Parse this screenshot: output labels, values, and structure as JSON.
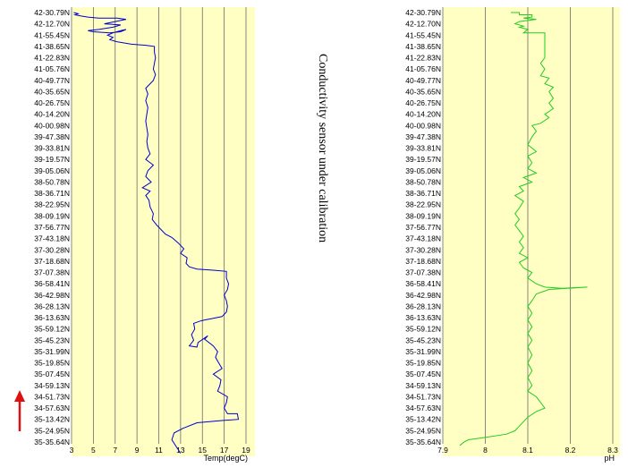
{
  "note": "Conductivity sensor under calibration",
  "colors": {
    "panel_bg": "#ffffc4",
    "gridline": "#6a6a6a",
    "temp_line": "#0000cc",
    "ph_line": "#22cc22",
    "arrow": "#dd1111"
  },
  "latitudes": [
    "42-30.79N",
    "42-12.70N",
    "41-55.45N",
    "41-38.65N",
    "41-22.83N",
    "41-05.76N",
    "40-49.77N",
    "40-35.65N",
    "40-26.75N",
    "40-14.20N",
    "40-00.98N",
    "39-47.38N",
    "39-33.81N",
    "39-19.57N",
    "39-05.06N",
    "38-50.78N",
    "38-36.71N",
    "38-22.95N",
    "38-09.19N",
    "37-56.77N",
    "37-43.18N",
    "37-30.28N",
    "37-18.68N",
    "37-07.38N",
    "36-58.41N",
    "36-42.98N",
    "36-28.13N",
    "36-13.63N",
    "35-59.12N",
    "35-45.23N",
    "35-31.99N",
    "35-19.85N",
    "35-07.45N",
    "34-59.13N",
    "34-51.73N",
    "34-57.63N",
    "35-13.42N",
    "35-24.95N",
    "35-35.64N"
  ],
  "chart_data": [
    {
      "type": "line",
      "xlabel": "Temp(degC)",
      "xticks": [
        "3",
        "5",
        "7",
        "9",
        "11",
        "13",
        "15",
        "17",
        "19"
      ],
      "xlim": [
        3,
        19
      ],
      "y_categories_ref": "latitudes",
      "series": [
        {
          "color": "#0000cc",
          "points": [
            [
              3.2,
              0
            ],
            [
              3.6,
              0.1
            ],
            [
              3.3,
              0.2
            ],
            [
              3.8,
              0.3
            ],
            [
              4.5,
              0.4
            ],
            [
              5.5,
              0.5
            ],
            [
              7.2,
              0.5
            ],
            [
              8.0,
              0.6
            ],
            [
              7.0,
              0.8
            ],
            [
              6.0,
              1.0
            ],
            [
              7.5,
              1.1
            ],
            [
              6.8,
              1.3
            ],
            [
              5.5,
              1.5
            ],
            [
              4.5,
              1.6
            ],
            [
              5.0,
              1.7
            ],
            [
              6.5,
              1.8
            ],
            [
              7.5,
              1.7
            ],
            [
              8.0,
              1.5
            ],
            [
              7.5,
              1.6
            ],
            [
              6.8,
              1.8
            ],
            [
              6.3,
              2.0
            ],
            [
              6.8,
              2.2
            ],
            [
              6.5,
              2.4
            ],
            [
              7.2,
              2.6
            ],
            [
              8.5,
              2.8
            ],
            [
              9.8,
              2.9
            ],
            [
              10.6,
              3.0
            ],
            [
              10.6,
              3.5
            ],
            [
              10.7,
              4.0
            ],
            [
              10.6,
              4.5
            ],
            [
              10.5,
              5.0
            ],
            [
              10.7,
              5.5
            ],
            [
              10.5,
              6.0
            ],
            [
              10.2,
              6.3
            ],
            [
              9.8,
              6.7
            ],
            [
              10.0,
              7.2
            ],
            [
              9.8,
              7.8
            ],
            [
              10.0,
              8.4
            ],
            [
              9.9,
              9.0
            ],
            [
              9.8,
              9.6
            ],
            [
              9.9,
              10.2
            ],
            [
              10.0,
              10.8
            ],
            [
              9.9,
              11.4
            ],
            [
              10.0,
              12.0
            ],
            [
              10.2,
              12.5
            ],
            [
              9.8,
              13.0
            ],
            [
              10.5,
              13.5
            ],
            [
              10.0,
              14.0
            ],
            [
              9.8,
              14.5
            ],
            [
              10.3,
              15.0
            ],
            [
              9.5,
              15.5
            ],
            [
              10.2,
              15.8
            ],
            [
              9.8,
              16.2
            ],
            [
              10.1,
              16.6
            ],
            [
              10.2,
              17.2
            ],
            [
              10.5,
              17.8
            ],
            [
              10.4,
              18.3
            ],
            [
              10.8,
              18.8
            ],
            [
              11.2,
              19.2
            ],
            [
              11.6,
              19.6
            ],
            [
              12.2,
              19.9
            ],
            [
              12.8,
              20.4
            ],
            [
              13.3,
              20.9
            ],
            [
              13.0,
              21.3
            ],
            [
              13.6,
              21.7
            ],
            [
              13.5,
              22.2
            ],
            [
              13.8,
              22.5
            ],
            [
              14.5,
              22.7
            ],
            [
              16.0,
              22.8
            ],
            [
              17.2,
              22.9
            ],
            [
              17.2,
              23.5
            ],
            [
              17.4,
              24.0
            ],
            [
              17.3,
              24.5
            ],
            [
              17.0,
              25.0
            ],
            [
              17.2,
              25.5
            ],
            [
              17.3,
              26.0
            ],
            [
              17.2,
              26.5
            ],
            [
              16.8,
              26.9
            ],
            [
              15.8,
              27.1
            ],
            [
              15.2,
              27.2
            ],
            [
              14.8,
              27.3
            ],
            [
              14.2,
              27.5
            ],
            [
              14.3,
              28.0
            ],
            [
              14.0,
              28.5
            ],
            [
              14.2,
              29.0
            ],
            [
              13.8,
              29.5
            ],
            [
              14.5,
              29.6
            ],
            [
              14.6,
              29.2
            ],
            [
              15.5,
              28.6
            ],
            [
              15.2,
              28.9
            ],
            [
              16.0,
              29.5
            ],
            [
              16.4,
              30.0
            ],
            [
              16.2,
              30.5
            ],
            [
              16.5,
              31.0
            ],
            [
              16.8,
              31.5
            ],
            [
              16.0,
              32.0
            ],
            [
              16.7,
              32.5
            ],
            [
              16.6,
              33.0
            ],
            [
              16.4,
              33.5
            ],
            [
              17.3,
              34.0
            ],
            [
              17.2,
              34.5
            ],
            [
              17.0,
              35.0
            ],
            [
              17.3,
              35.5
            ],
            [
              18.2,
              35.5
            ],
            [
              18.3,
              36.0
            ],
            [
              16.8,
              36.1
            ],
            [
              14.5,
              36.3
            ],
            [
              13.2,
              36.8
            ],
            [
              12.4,
              37.2
            ],
            [
              12.2,
              37.8
            ],
            [
              12.6,
              38.4
            ],
            [
              13.0,
              39.0
            ]
          ]
        }
      ]
    },
    {
      "type": "line",
      "xlabel": "pH",
      "xticks": [
        "7.9",
        "8",
        "8.1",
        "8.2",
        "8.3"
      ],
      "xlim": [
        7.9,
        8.3
      ],
      "y_categories_ref": "latitudes",
      "series": [
        {
          "color": "#22cc22",
          "points": [
            [
              8.06,
              0
            ],
            [
              8.08,
              0
            ],
            [
              8.08,
              0.2
            ],
            [
              8.11,
              0.2
            ],
            [
              8.11,
              0.4
            ],
            [
              8.09,
              0.5
            ],
            [
              8.12,
              0.6
            ],
            [
              8.08,
              0.8
            ],
            [
              8.07,
              1.0
            ],
            [
              8.09,
              1.2
            ],
            [
              8.08,
              1.3
            ],
            [
              8.1,
              1.5
            ],
            [
              8.09,
              1.8
            ],
            [
              8.14,
              1.8
            ],
            [
              8.14,
              4.0
            ],
            [
              8.13,
              4.5
            ],
            [
              8.14,
              5.0
            ],
            [
              8.13,
              5.6
            ],
            [
              8.15,
              5.8
            ],
            [
              8.14,
              6.3
            ],
            [
              8.16,
              6.6
            ],
            [
              8.15,
              7.0
            ],
            [
              8.16,
              7.6
            ],
            [
              8.15,
              8.0
            ],
            [
              8.16,
              8.5
            ],
            [
              8.14,
              9.0
            ],
            [
              8.15,
              9.3
            ],
            [
              8.13,
              9.8
            ],
            [
              8.11,
              10.0
            ],
            [
              8.12,
              10.5
            ],
            [
              8.11,
              11.0
            ],
            [
              8.1,
              11.7
            ],
            [
              8.12,
              12.3
            ],
            [
              8.1,
              12.7
            ],
            [
              8.11,
              13.3
            ],
            [
              8.1,
              13.8
            ],
            [
              8.12,
              14.2
            ],
            [
              8.09,
              14.6
            ],
            [
              8.11,
              15.0
            ],
            [
              8.08,
              15.4
            ],
            [
              8.09,
              15.8
            ],
            [
              8.07,
              16.2
            ],
            [
              8.09,
              16.7
            ],
            [
              8.08,
              17.3
            ],
            [
              8.07,
              17.8
            ],
            [
              8.08,
              18.3
            ],
            [
              8.07,
              18.8
            ],
            [
              8.08,
              19.3
            ],
            [
              8.09,
              19.8
            ],
            [
              8.08,
              20.3
            ],
            [
              8.09,
              20.8
            ],
            [
              8.08,
              21.3
            ],
            [
              8.1,
              21.7
            ],
            [
              8.08,
              22.1
            ],
            [
              8.09,
              22.6
            ],
            [
              8.11,
              23.0
            ],
            [
              8.1,
              23.5
            ],
            [
              8.12,
              24.0
            ],
            [
              8.14,
              24.3
            ],
            [
              8.18,
              24.4
            ],
            [
              8.24,
              24.3
            ],
            [
              8.15,
              24.5
            ],
            [
              8.12,
              24.9
            ],
            [
              8.11,
              25.5
            ],
            [
              8.1,
              26.0
            ],
            [
              8.11,
              26.6
            ],
            [
              8.1,
              27.2
            ],
            [
              8.11,
              27.8
            ],
            [
              8.1,
              28.4
            ],
            [
              8.11,
              29.0
            ],
            [
              8.1,
              29.6
            ],
            [
              8.11,
              30.3
            ],
            [
              8.1,
              31.0
            ],
            [
              8.11,
              31.7
            ],
            [
              8.1,
              32.3
            ],
            [
              8.11,
              33.0
            ],
            [
              8.1,
              33.5
            ],
            [
              8.12,
              34.0
            ],
            [
              8.13,
              34.5
            ],
            [
              8.14,
              35.0
            ],
            [
              8.12,
              35.3
            ],
            [
              8.1,
              35.8
            ],
            [
              8.09,
              36.2
            ],
            [
              8.08,
              36.6
            ],
            [
              8.07,
              37.0
            ],
            [
              8.05,
              37.3
            ],
            [
              8.0,
              37.6
            ],
            [
              7.96,
              37.8
            ],
            [
              7.95,
              38.0
            ],
            [
              7.94,
              38.3
            ]
          ]
        }
      ]
    }
  ]
}
